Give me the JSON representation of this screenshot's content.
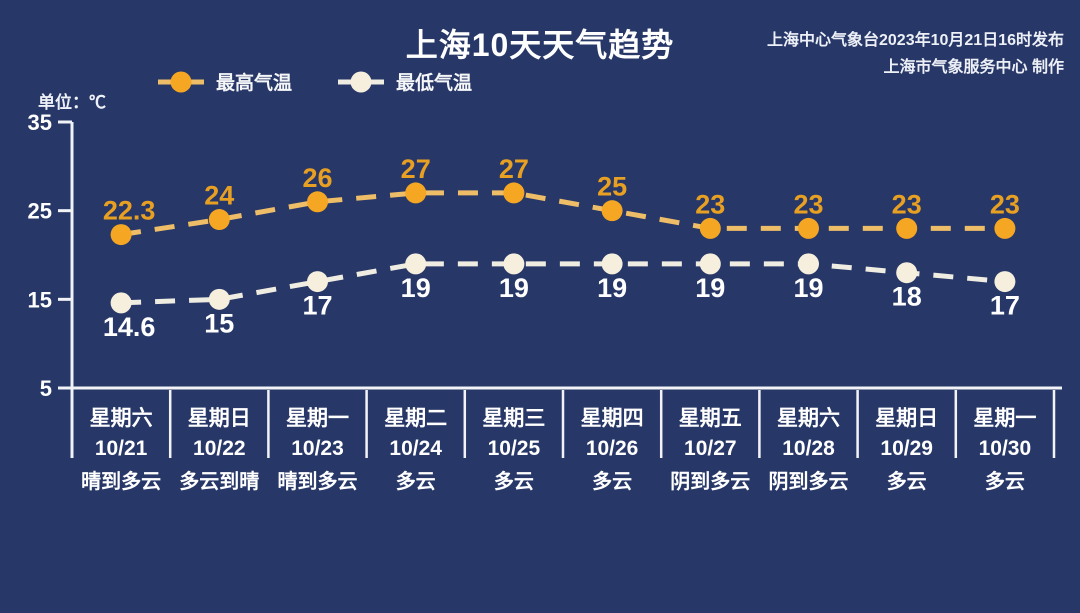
{
  "header": {
    "title": "上海10天天气趋势",
    "source_line1": "上海中心气象台2023年10月21日16时发布",
    "source_line2": "上海市气象服务中心 制作",
    "unit_label": "单位：℃"
  },
  "colors": {
    "background": "#273767",
    "axis": "#f2f3f7",
    "divider": "#f2f3f7",
    "tick_text": "#ffffff",
    "category_text": "#ffffff",
    "high_marker": "#f5a623",
    "high_line": "#eebd68",
    "high_label": "#e8a023",
    "low_marker": "#f6efdd",
    "low_line": "#efece2",
    "low_label": "#ffffff"
  },
  "chart_data": {
    "type": "line",
    "title": "上海10天天气趋势",
    "ylabel": "单位：℃",
    "ylim": [
      5,
      35
    ],
    "yticks": [
      35,
      25,
      15,
      5
    ],
    "grid": false,
    "legend_position": "top-left",
    "categories": [
      {
        "weekday": "星期六",
        "date": "10/21",
        "weather": "晴到多云"
      },
      {
        "weekday": "星期日",
        "date": "10/22",
        "weather": "多云到晴"
      },
      {
        "weekday": "星期一",
        "date": "10/23",
        "weather": "晴到多云"
      },
      {
        "weekday": "星期二",
        "date": "10/24",
        "weather": "多云"
      },
      {
        "weekday": "星期三",
        "date": "10/25",
        "weather": "多云"
      },
      {
        "weekday": "星期四",
        "date": "10/26",
        "weather": "多云"
      },
      {
        "weekday": "星期五",
        "date": "10/27",
        "weather": "阴到多云"
      },
      {
        "weekday": "星期六",
        "date": "10/28",
        "weather": "阴到多云"
      },
      {
        "weekday": "星期日",
        "date": "10/29",
        "weather": "多云"
      },
      {
        "weekday": "星期一",
        "date": "10/30",
        "weather": "多云"
      }
    ],
    "series": [
      {
        "key": "high-temp",
        "name": "最高气温",
        "values": [
          22.3,
          24,
          26,
          27,
          27,
          25,
          23,
          23,
          23,
          23
        ],
        "labels": [
          "22.3",
          "24",
          "26",
          "27",
          "27",
          "25",
          "23",
          "23",
          "23",
          "23"
        ],
        "label_position": "above",
        "color_marker": "#f5a623",
        "color_line": "#eebd68",
        "color_label": "#e8a023"
      },
      {
        "key": "low-temp",
        "name": "最低气温",
        "values": [
          14.6,
          15,
          17,
          19,
          19,
          19,
          19,
          19,
          18,
          17
        ],
        "labels": [
          "14.6",
          "15",
          "17",
          "19",
          "19",
          "19",
          "19",
          "19",
          "18",
          "17"
        ],
        "label_position": "below",
        "color_marker": "#f6efdd",
        "color_line": "#efece2",
        "color_label": "#ffffff"
      }
    ]
  }
}
